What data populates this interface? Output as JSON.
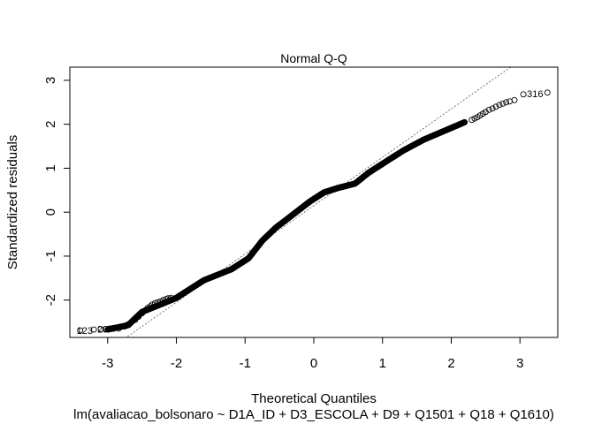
{
  "chart_data": {
    "type": "scatter",
    "title": "Normal Q-Q",
    "xlabel": "Theoretical Quantiles",
    "ylabel": "Standardized residuals",
    "subtitle": "lm(avaliacao_bolsonaro ~ D1A_ID + D3_ESCOLA + D9 + Q1501 + Q18 + Q1610)",
    "xlim": [
      -3.55,
      3.55
    ],
    "ylim": [
      -2.85,
      3.3
    ],
    "xticks": [
      -3,
      -2,
      -1,
      0,
      1,
      2,
      3
    ],
    "xtick_labels": [
      "-3",
      "-2",
      "-1",
      "0",
      "1",
      "2",
      "3"
    ],
    "yticks": [
      -2,
      -1,
      0,
      1,
      2,
      3
    ],
    "ytick_labels": [
      "-2",
      "-1",
      "0",
      "1",
      "2",
      "3"
    ],
    "grid": false,
    "marker": "open-circle",
    "reference_line": {
      "style": "dotted",
      "intercept": 0.15,
      "slope": 1.1
    },
    "qq_curve": {
      "x": [
        -3.0,
        -2.7,
        -2.5,
        -2.2,
        -2.0,
        -1.8,
        -1.6,
        -1.2,
        -0.95,
        -0.75,
        -0.55,
        -0.3,
        -0.05,
        0.15,
        0.35,
        0.6,
        0.8,
        1.0,
        1.3,
        1.6,
        1.9,
        2.2
      ],
      "y": [
        -2.67,
        -2.57,
        -2.27,
        -2.08,
        -1.95,
        -1.75,
        -1.55,
        -1.3,
        -1.05,
        -0.65,
        -0.35,
        -0.05,
        0.25,
        0.45,
        0.55,
        0.65,
        0.9,
        1.1,
        1.4,
        1.65,
        1.85,
        2.05
      ]
    },
    "tail_points": {
      "x": [
        -3.4,
        -3.2,
        -3.1,
        -3.03,
        -2.98,
        -2.93,
        -2.87,
        -2.82,
        -2.75,
        -2.7,
        -2.65,
        -2.6,
        -2.55,
        -2.5,
        -2.46,
        -2.42,
        -2.38,
        -2.35,
        -2.31,
        -2.27,
        -2.23,
        -2.19,
        -2.15,
        -2.12,
        -2.08,
        2.3,
        2.34,
        2.38,
        2.42,
        2.46,
        2.5,
        2.55,
        2.6,
        2.65,
        2.7,
        2.75,
        2.8,
        2.85,
        2.92,
        3.05,
        3.4
      ],
      "y": [
        -2.69,
        -2.67,
        -2.66,
        -2.66,
        -2.65,
        -2.64,
        -2.63,
        -2.62,
        -2.6,
        -2.55,
        -2.5,
        -2.45,
        -2.38,
        -2.3,
        -2.24,
        -2.18,
        -2.14,
        -2.1,
        -2.07,
        -2.05,
        -2.03,
        -2.0,
        -1.98,
        -1.96,
        -1.95,
        2.1,
        2.13,
        2.16,
        2.2,
        2.24,
        2.28,
        2.33,
        2.36,
        2.4,
        2.44,
        2.47,
        2.5,
        2.52,
        2.55,
        2.68,
        2.72
      ]
    },
    "point_labels": [
      {
        "text": "316",
        "x": 3.05,
        "y": 2.7
      },
      {
        "text": "123",
        "x": -3.4,
        "y": -2.69
      },
      {
        "text": "29",
        "x": -3.1,
        "y": -2.66
      },
      {
        "text": "69",
        "x": -2.9,
        "y": -2.64
      }
    ]
  }
}
